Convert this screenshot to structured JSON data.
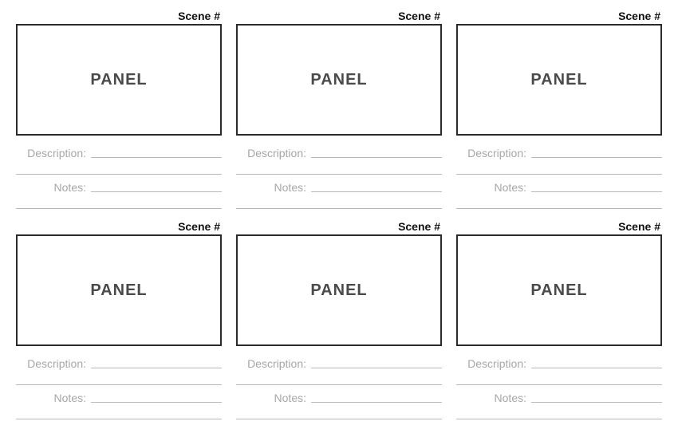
{
  "layout": {
    "cols": 3,
    "rows": 2,
    "page_bg": "#ffffff",
    "panel_border_color": "#2b2b2b",
    "panel_border_width": 2,
    "line_color": "#b8b8b8",
    "label_color": "#a7a7a7",
    "scene_label_color": "#111111",
    "panel_text_color": "#4a4a4a"
  },
  "labels": {
    "scene": "Scene #",
    "panel": "PANEL",
    "description": "Description:",
    "notes": "Notes:"
  },
  "cards": [
    {
      "scene": "Scene #",
      "panel": "PANEL",
      "description_label": "Description:",
      "notes_label": "Notes:"
    },
    {
      "scene": "Scene #",
      "panel": "PANEL",
      "description_label": "Description:",
      "notes_label": "Notes:"
    },
    {
      "scene": "Scene #",
      "panel": "PANEL",
      "description_label": "Description:",
      "notes_label": "Notes:"
    },
    {
      "scene": "Scene #",
      "panel": "PANEL",
      "description_label": "Description:",
      "notes_label": "Notes:"
    },
    {
      "scene": "Scene #",
      "panel": "PANEL",
      "description_label": "Description:",
      "notes_label": "Notes:"
    },
    {
      "scene": "Scene #",
      "panel": "PANEL",
      "description_label": "Description:",
      "notes_label": "Notes:"
    }
  ]
}
